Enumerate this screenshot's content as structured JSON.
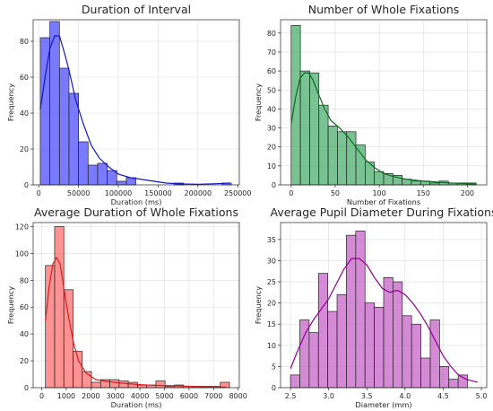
{
  "chart_data": [
    {
      "type": "bar",
      "title": "Duration of Interval",
      "xlabel": "Duration (ms)",
      "ylabel": "Frequency",
      "xlim": [
        -7000,
        252000
      ],
      "ylim": [
        0,
        92
      ],
      "xticks": [
        0,
        50000,
        100000,
        150000,
        200000,
        250000
      ],
      "xtick_labels": [
        "0",
        "50000",
        "100000",
        "150000",
        "200000",
        "250000"
      ],
      "yticks": [
        0,
        20,
        40,
        60,
        80
      ],
      "bin_start": 2000,
      "bin_width": 12000,
      "values": [
        82,
        91,
        65,
        51,
        24,
        11,
        12,
        8,
        2,
        4,
        0,
        0,
        0,
        0,
        1,
        0,
        0,
        0,
        0,
        1
      ],
      "kde": [
        [
          2000,
          42
        ],
        [
          8000,
          60
        ],
        [
          14000,
          76
        ],
        [
          20000,
          83
        ],
        [
          26000,
          83
        ],
        [
          32000,
          74
        ],
        [
          38000,
          64
        ],
        [
          46000,
          48
        ],
        [
          56000,
          34
        ],
        [
          66000,
          22
        ],
        [
          76000,
          15
        ],
        [
          88000,
          10
        ],
        [
          100000,
          6
        ],
        [
          115000,
          4
        ],
        [
          130000,
          3
        ],
        [
          145000,
          2
        ],
        [
          160000,
          1
        ],
        [
          180000,
          0.5
        ],
        [
          200000,
          0.3
        ],
        [
          220000,
          0.6
        ],
        [
          240000,
          1
        ]
      ],
      "color": "#4d4dff",
      "line_color": "#1515c8"
    },
    {
      "type": "bar",
      "title": "Number of Whole Fixations",
      "xlabel": "Number of Fixations",
      "ylabel": "Frequency",
      "xlim": [
        -12,
        222
      ],
      "ylim": [
        0,
        87
      ],
      "xticks": [
        0,
        50,
        100,
        150,
        200
      ],
      "xtick_labels": [
        "0",
        "50",
        "100",
        "150",
        "200"
      ],
      "yticks": [
        0,
        10,
        20,
        30,
        40,
        50,
        60,
        70,
        80
      ],
      "bin_start": 0,
      "bin_width": 10.5,
      "values": [
        84,
        60,
        59,
        42,
        31,
        28,
        28,
        21,
        12,
        7,
        6,
        5,
        3,
        2,
        2,
        1,
        2,
        1,
        1,
        1
      ],
      "kde": [
        [
          0,
          32
        ],
        [
          5,
          46
        ],
        [
          10,
          56
        ],
        [
          15,
          59
        ],
        [
          20,
          59
        ],
        [
          25,
          55
        ],
        [
          30,
          49
        ],
        [
          38,
          40
        ],
        [
          45,
          34
        ],
        [
          55,
          30
        ],
        [
          65,
          25
        ],
        [
          75,
          19
        ],
        [
          85,
          13
        ],
        [
          95,
          9
        ],
        [
          105,
          6
        ],
        [
          115,
          4.5
        ],
        [
          130,
          3
        ],
        [
          150,
          2
        ],
        [
          170,
          1.3
        ],
        [
          190,
          0.8
        ],
        [
          210,
          0.4
        ]
      ],
      "color": "#4caf6e",
      "line_color": "#0c6a20"
    },
    {
      "type": "bar",
      "title": "Average Duration of Whole Fixations",
      "xlabel": "Duration (ms)",
      "ylabel": "Frequency",
      "xlim": [
        -350,
        8050
      ],
      "ylim": [
        0,
        123
      ],
      "xticks": [
        0,
        1000,
        2000,
        3000,
        4000,
        5000,
        6000,
        7000,
        8000
      ],
      "xtick_labels": [
        "0",
        "1000",
        "2000",
        "3000",
        "4000",
        "5000",
        "6000",
        "7000",
        "8000"
      ],
      "yticks": [
        0,
        20,
        40,
        60,
        80,
        100,
        120
      ],
      "bin_start": 150,
      "bin_width": 375,
      "values": [
        91,
        120,
        73,
        27,
        12,
        4,
        6,
        6,
        5,
        4,
        2,
        2,
        5,
        1,
        2,
        1,
        1,
        1,
        1,
        4
      ],
      "kde": [
        [
          150,
          50
        ],
        [
          300,
          75
        ],
        [
          450,
          92
        ],
        [
          600,
          97
        ],
        [
          750,
          92
        ],
        [
          900,
          74
        ],
        [
          1100,
          52
        ],
        [
          1300,
          33
        ],
        [
          1500,
          20
        ],
        [
          1800,
          11
        ],
        [
          2200,
          6
        ],
        [
          2700,
          4.5
        ],
        [
          3200,
          3.5
        ],
        [
          3800,
          2.5
        ],
        [
          4500,
          1.8
        ],
        [
          5200,
          1.5
        ],
        [
          6000,
          1
        ],
        [
          6800,
          0.6
        ],
        [
          7500,
          0.4
        ]
      ],
      "color": "#ff6f6f",
      "line_color": "#d61f1f"
    },
    {
      "type": "bar",
      "title": "Average Pupil Diameter During Fixations",
      "xlabel": "Diameter (mm)",
      "ylabel": "Frequency",
      "xlim": [
        2.37,
        5.07
      ],
      "ylim": [
        0,
        39
      ],
      "xticks": [
        2.5,
        3.0,
        3.5,
        4.0,
        4.5,
        5.0
      ],
      "xtick_labels": [
        "2.5",
        "3.0",
        "3.5",
        "4.0",
        "4.5",
        "5.0"
      ],
      "yticks": [
        0,
        5,
        10,
        15,
        20,
        25,
        30,
        35
      ],
      "bin_start": 2.5,
      "bin_width": 0.122,
      "values": [
        3,
        16,
        13,
        27,
        18,
        22,
        36,
        37,
        20,
        19,
        26,
        25,
        17,
        15,
        7,
        16,
        5,
        2,
        3
      ],
      "kde": [
        [
          2.5,
          4.5
        ],
        [
          2.6,
          9
        ],
        [
          2.7,
          13
        ],
        [
          2.8,
          16
        ],
        [
          2.9,
          18.5
        ],
        [
          3.0,
          21
        ],
        [
          3.1,
          24.5
        ],
        [
          3.2,
          28
        ],
        [
          3.3,
          30.5
        ],
        [
          3.4,
          30.5
        ],
        [
          3.5,
          29
        ],
        [
          3.6,
          26
        ],
        [
          3.7,
          23.5
        ],
        [
          3.8,
          22.5
        ],
        [
          3.9,
          23
        ],
        [
          4.0,
          22
        ],
        [
          4.1,
          20
        ],
        [
          4.2,
          17.5
        ],
        [
          4.3,
          14.5
        ],
        [
          4.4,
          11
        ],
        [
          4.5,
          7.5
        ],
        [
          4.6,
          5
        ],
        [
          4.7,
          3
        ],
        [
          4.8,
          2
        ],
        [
          4.9,
          1.5
        ],
        [
          4.95,
          1.3
        ]
      ],
      "color": "#c763c7",
      "line_color": "#8e008e"
    }
  ]
}
